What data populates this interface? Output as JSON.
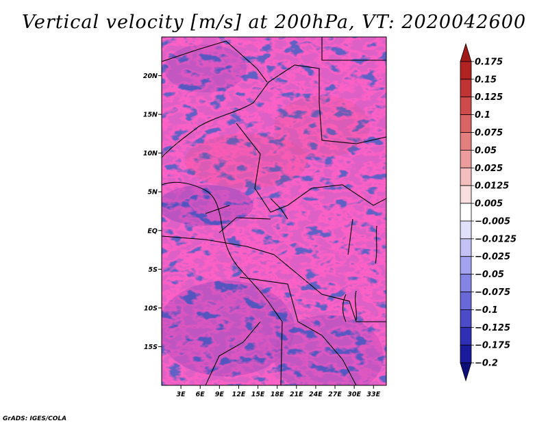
{
  "chart_data": {
    "type": "heatmap",
    "title": "Vertical velocity [m/s] at 200hPa, VT: 2020042600",
    "variable": "Vertical velocity",
    "units": "m/s",
    "level": "200hPa",
    "valid_time": "2020042600",
    "x_axis": {
      "range_deg_east": [
        0,
        35
      ],
      "ticks": [
        3,
        6,
        9,
        12,
        15,
        18,
        21,
        24,
        27,
        30,
        33
      ],
      "tick_labels": [
        "3E",
        "6E",
        "9E",
        "12E",
        "15E",
        "18E",
        "21E",
        "24E",
        "27E",
        "30E",
        "33E"
      ]
    },
    "y_axis": {
      "range_deg_north": [
        -20,
        25
      ],
      "ticks": [
        20,
        15,
        10,
        5,
        0,
        -5,
        -10,
        -15
      ],
      "tick_labels": [
        "20N",
        "15N",
        "10N",
        "5N",
        "EQ",
        "5S",
        "10S",
        "15S"
      ]
    },
    "colorbar": {
      "levels": [
        0.175,
        0.15,
        0.125,
        0.1,
        0.075,
        0.05,
        0.025,
        0.0125,
        0.005,
        -0.005,
        -0.0125,
        -0.025,
        -0.05,
        -0.075,
        -0.1,
        -0.125,
        -0.175,
        -0.2
      ],
      "labels": [
        "0.175",
        "0.15",
        "0.125",
        "0.1",
        "0.075",
        "0.05",
        "0.025",
        "0.0125",
        "0.005",
        "−0.005",
        "−0.0125",
        "−0.025",
        "−0.05",
        "−0.075",
        "−0.1",
        "−0.125",
        "−0.175",
        "−0.2"
      ],
      "colors": [
        "#a01818",
        "#b22222",
        "#c23434",
        "#cf4a4a",
        "#da6464",
        "#e47f7f",
        "#ed9c9c",
        "#f4bebe",
        "#fadfdf",
        "#ffffff",
        "#e0e0fb",
        "#c2c2f5",
        "#a2a2ee",
        "#8484e4",
        "#6868d8",
        "#4c4cca",
        "#3030b6",
        "#1a1a9c",
        "#0e0e78"
      ]
    },
    "credit": "GrADS: IGES/COLA"
  }
}
